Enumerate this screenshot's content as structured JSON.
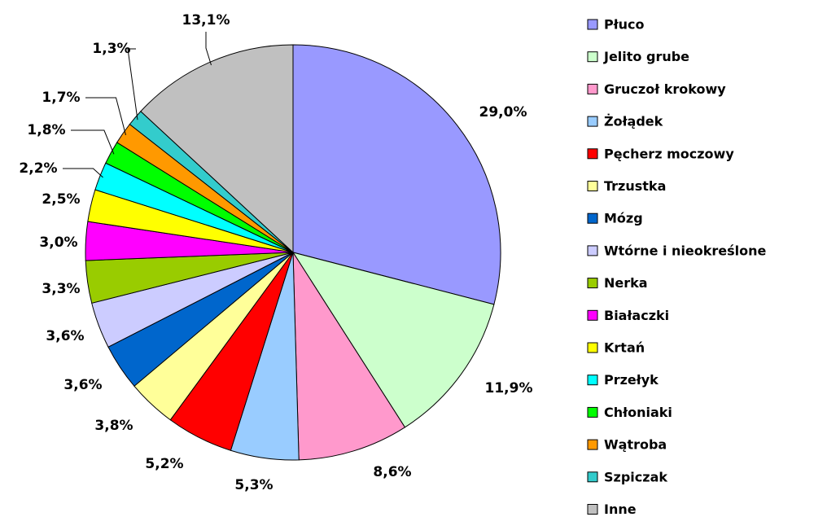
{
  "chart_data": {
    "type": "pie",
    "categories": [
      "Płuco",
      "Jelito grube",
      "Gruczoł krokowy",
      "Żołądek",
      "Pęcherz moczowy",
      "Trzustka",
      "Mózg",
      "Wtórne i nieokreślone",
      "Nerka",
      "Białaczki",
      "Krtań",
      "Przełyk",
      "Chłoniaki",
      "Wątroba",
      "Szpiczak",
      "Inne"
    ],
    "values": [
      29.0,
      11.9,
      8.6,
      5.3,
      5.2,
      3.8,
      3.6,
      3.6,
      3.3,
      3.0,
      2.5,
      2.2,
      1.8,
      1.7,
      1.3,
      13.1
    ],
    "value_labels": [
      "29,0%",
      "11,9%",
      "8,6%",
      "5,3%",
      "5,2%",
      "3,8%",
      "3,6%",
      "3,6%",
      "3,3%",
      "3,0%",
      "2,5%",
      "2,2%",
      "1,8%",
      "1,7%",
      "1,3%",
      "13,1%"
    ],
    "colors": [
      "#9999ff",
      "#ccffcc",
      "#ff99cc",
      "#99ccff",
      "#ff0000",
      "#ffff99",
      "#0066cc",
      "#ccccff",
      "#99cc00",
      "#ff00ff",
      "#ffff00",
      "#00ffff",
      "#00ff00",
      "#ff9900",
      "#33cccc",
      "#c0c0c0"
    ],
    "legend": "right"
  }
}
